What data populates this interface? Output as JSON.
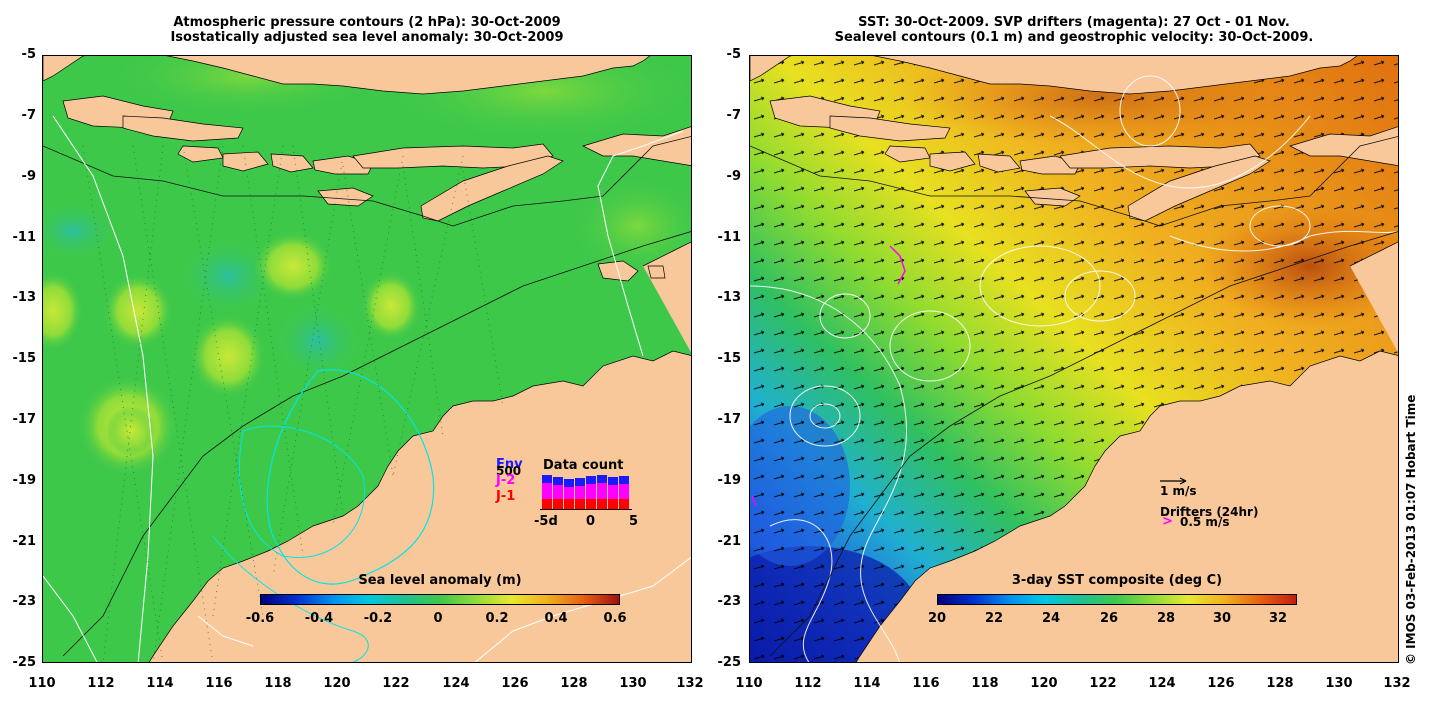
{
  "left_panel": {
    "title_line1": "Atmospheric pressure contours (2 hPa): 30-Oct-2009",
    "title_line2": "Isostatically adjusted sea level anomaly: 30-Oct-2009",
    "colorbar": {
      "title": "Sea level anomaly (m)",
      "ticks": [
        "-0.6",
        "-0.4",
        "-0.2",
        "0",
        "0.2",
        "0.4",
        "0.6"
      ]
    },
    "data_count": {
      "title": "Data count",
      "legend": [
        "Env",
        "J-2",
        "J-1"
      ],
      "legend_colors": [
        "#1a1aff",
        "#ff00ff",
        "#ff0000"
      ],
      "scale_label": "500",
      "x_ticks": [
        "-5d",
        "0",
        "5"
      ]
    }
  },
  "right_panel": {
    "title_line1": "SST: 30-Oct-2009. SVP drifters (magenta): 27 Oct - 01 Nov.",
    "title_line2": "Sealevel contours (0.1 m) and geostrophic velocity: 30-Oct-2009.",
    "colorbar": {
      "title": "3-day SST composite (deg C)",
      "ticks": [
        "20",
        "22",
        "24",
        "26",
        "28",
        "30",
        "32"
      ]
    },
    "velocity_legend": "1 m/s",
    "drifters_legend_title": "Drifters (24hr)",
    "drifters_legend_value": "0.5 m/s",
    "drifter_marker": ">"
  },
  "axes": {
    "y_ticks": [
      "-5",
      "-7",
      "-9",
      "-11",
      "-13",
      "-15",
      "-17",
      "-19",
      "-21",
      "-23",
      "-25"
    ],
    "x_ticks": [
      "110",
      "112",
      "114",
      "116",
      "118",
      "120",
      "122",
      "124",
      "126",
      "128",
      "130",
      "132"
    ]
  },
  "copyright": "© IMOS 03-Feb-2013 01:07 Hobart Time",
  "colors": {
    "land": "#f9c89a",
    "sla_ocean": "#3ec84a",
    "sst_warm": "#f0a020",
    "sst_cool": "#1f5fe0"
  }
}
